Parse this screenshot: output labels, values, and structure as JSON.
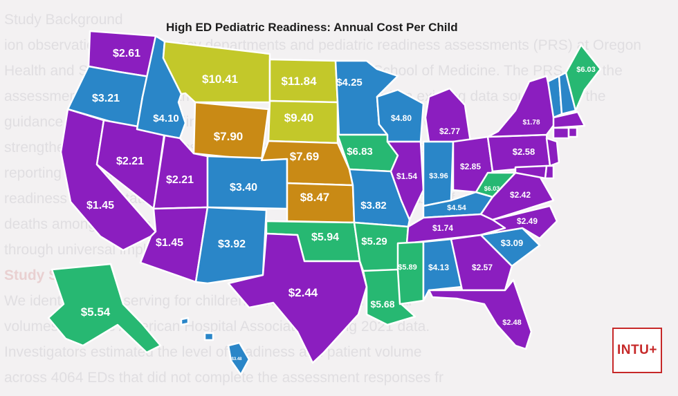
{
  "title": "High ED Pediatric Readiness: Annual Cost Per Child",
  "logo": "INTU+",
  "colors": {
    "purple": "#8b1ebf",
    "blue": "#2a86c8",
    "green": "#27b872",
    "olive": "#c3c82a",
    "orange": "#c98a15"
  },
  "states": [
    {
      "id": "WA",
      "value": "$2.61",
      "color": "purple"
    },
    {
      "id": "OR",
      "value": "$3.21",
      "color": "blue"
    },
    {
      "id": "CA",
      "value": "$1.45",
      "color": "purple"
    },
    {
      "id": "NV",
      "value": "$2.21",
      "color": "purple"
    },
    {
      "id": "ID",
      "value": "$4.10",
      "color": "blue"
    },
    {
      "id": "MT",
      "value": "$10.41",
      "color": "olive"
    },
    {
      "id": "WY",
      "value": "$7.90",
      "color": "orange"
    },
    {
      "id": "UT",
      "value": "$2.21",
      "color": "purple"
    },
    {
      "id": "AZ",
      "value": "$1.45",
      "color": "purple"
    },
    {
      "id": "CO",
      "value": "$3.40",
      "color": "blue"
    },
    {
      "id": "NM",
      "value": "$3.92",
      "color": "blue"
    },
    {
      "id": "ND",
      "value": "$11.84",
      "color": "olive"
    },
    {
      "id": "SD",
      "value": "$9.40",
      "color": "olive"
    },
    {
      "id": "NE",
      "value": "$7.69",
      "color": "orange"
    },
    {
      "id": "KS",
      "value": "$8.47",
      "color": "orange"
    },
    {
      "id": "OK",
      "value": "$5.94",
      "color": "green"
    },
    {
      "id": "TX",
      "value": "$2.44",
      "color": "purple"
    },
    {
      "id": "MN",
      "value": "$4.25",
      "color": "blue"
    },
    {
      "id": "IA",
      "value": "$6.83",
      "color": "green"
    },
    {
      "id": "MO",
      "value": "$3.82",
      "color": "blue"
    },
    {
      "id": "AR",
      "value": "$5.29",
      "color": "green"
    },
    {
      "id": "LA",
      "value": "$5.68",
      "color": "green"
    },
    {
      "id": "WI",
      "value": "$4.80",
      "color": "blue"
    },
    {
      "id": "IL",
      "value": "$1.54",
      "color": "purple"
    },
    {
      "id": "MI",
      "value": "$2.77",
      "color": "purple"
    },
    {
      "id": "IN",
      "value": "$3.96",
      "color": "blue"
    },
    {
      "id": "OH",
      "value": "$2.85",
      "color": "purple"
    },
    {
      "id": "KY",
      "value": "$4.54",
      "color": "blue"
    },
    {
      "id": "TN",
      "value": "$1.74",
      "color": "purple"
    },
    {
      "id": "MS",
      "value": "$5.89",
      "color": "green"
    },
    {
      "id": "AL",
      "value": "$4.13",
      "color": "blue"
    },
    {
      "id": "GA",
      "value": "$2.57",
      "color": "purple"
    },
    {
      "id": "FL",
      "value": "$2.48",
      "color": "purple"
    },
    {
      "id": "SC",
      "value": "$3.09",
      "color": "blue"
    },
    {
      "id": "NC",
      "value": "$2.49",
      "color": "purple"
    },
    {
      "id": "VA",
      "value": "$2.42",
      "color": "purple"
    },
    {
      "id": "WV",
      "value": "$6.03",
      "color": "green"
    },
    {
      "id": "PA",
      "value": "$2.58",
      "color": "purple"
    },
    {
      "id": "NY",
      "value": "$1.78",
      "color": "purple"
    },
    {
      "id": "VT",
      "value": "",
      "color": "blue"
    },
    {
      "id": "NH",
      "value": "",
      "color": "blue"
    },
    {
      "id": "ME",
      "value": "$6.03",
      "color": "green"
    },
    {
      "id": "MA",
      "value": "",
      "color": "purple"
    },
    {
      "id": "CT",
      "value": "",
      "color": "purple"
    },
    {
      "id": "RI",
      "value": "",
      "color": "purple"
    },
    {
      "id": "NJ",
      "value": "",
      "color": "purple"
    },
    {
      "id": "DE",
      "value": "",
      "color": "purple"
    },
    {
      "id": "MD",
      "value": "",
      "color": "purple"
    },
    {
      "id": "AK",
      "value": "$5.54",
      "color": "green"
    },
    {
      "id": "HI",
      "value": "$3.48",
      "color": "blue"
    }
  ]
}
